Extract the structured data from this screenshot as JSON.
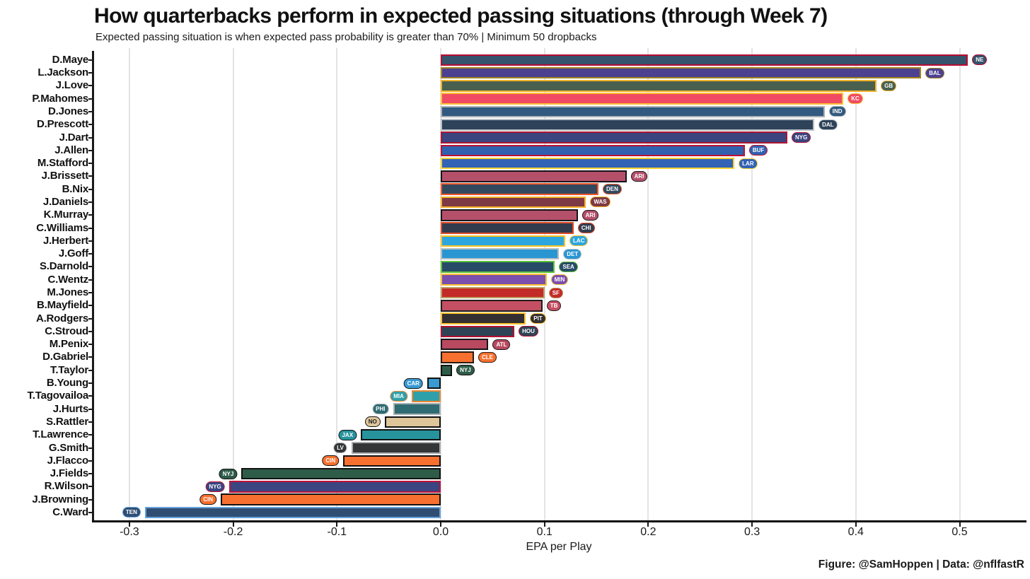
{
  "header": {
    "title": "How quarterbacks perform in expected passing situations (through Week 7)",
    "subtitle": "Expected passing situation is when expected pass probability is greater than 70% | Minimum 50 dropbacks"
  },
  "footer": {
    "caption": "Figure: @SamHoppen | Data: @nflfastR"
  },
  "chart_data": {
    "type": "bar",
    "orientation": "horizontal",
    "title": "How quarterbacks perform in expected passing situations (through Week 7)",
    "subtitle": "Expected passing situation is when expected pass probability is greater than 70% | Minimum 50 dropbacks",
    "xlabel": "EPA per Play",
    "ylabel": "",
    "xlim": [
      -0.335,
      0.568
    ],
    "x_ticks": [
      -0.3,
      -0.2,
      -0.1,
      0.0,
      0.1,
      0.2,
      0.3,
      0.4,
      0.5
    ],
    "x_tick_labels": [
      "-0.3",
      "-0.2",
      "-0.1",
      "0.0",
      "0.1",
      "0.2",
      "0.3",
      "0.4",
      "0.5"
    ],
    "grid": "vertical-major-only",
    "legend": "none",
    "bars": [
      {
        "player": "D.Maye",
        "team": "NE",
        "value": 0.508,
        "fill": "#35536B",
        "border": "#B80D33",
        "logo_text": "#ffffff"
      },
      {
        "player": "L.Jackson",
        "team": "BAL",
        "value": 0.463,
        "fill": "#4C4191",
        "border": "#A3841F",
        "logo_text": "#ffffff"
      },
      {
        "player": "J.Love",
        "team": "GB",
        "value": 0.42,
        "fill": "#49604F",
        "border": "#F2B127",
        "logo_text": "#ffffff"
      },
      {
        "player": "P.Mahomes",
        "team": "KC",
        "value": 0.388,
        "fill": "#F04B62",
        "border": "#FCBF33",
        "logo_text": "#ffffff"
      },
      {
        "player": "D.Jones",
        "team": "IND",
        "value": 0.37,
        "fill": "#32597F",
        "border": "#A9B0B5",
        "logo_text": "#ffffff"
      },
      {
        "player": "D.Prescott",
        "team": "DAL",
        "value": 0.36,
        "fill": "#2E4259",
        "border": "#B9C0C4",
        "logo_text": "#ffffff"
      },
      {
        "player": "J.Dart",
        "team": "NYG",
        "value": 0.334,
        "fill": "#3B447E",
        "border": "#AD1433",
        "logo_text": "#ffffff"
      },
      {
        "player": "J.Allen",
        "team": "BUF",
        "value": 0.293,
        "fill": "#3061AE",
        "border": "#BD0F33",
        "logo_text": "#ffffff"
      },
      {
        "player": "M.Stafford",
        "team": "LAR",
        "value": 0.283,
        "fill": "#3263B4",
        "border": "#F4D031",
        "logo_text": "#ffffff"
      },
      {
        "player": "J.Brissett",
        "team": "ARI",
        "value": 0.179,
        "fill": "#B5506B",
        "border": "#15151A",
        "logo_text": "#ffffff"
      },
      {
        "player": "B.Nix",
        "team": "DEN",
        "value": 0.152,
        "fill": "#32495E",
        "border": "#F4562A",
        "logo_text": "#ffffff"
      },
      {
        "player": "J.Daniels",
        "team": "WAS",
        "value": 0.14,
        "fill": "#7E3A44",
        "border": "#F6B126",
        "logo_text": "#ffffff"
      },
      {
        "player": "K.Murray",
        "team": "ARI",
        "value": 0.132,
        "fill": "#B5506B",
        "border": "#15151A",
        "logo_text": "#ffffff"
      },
      {
        "player": "C.Williams",
        "team": "CHI",
        "value": 0.128,
        "fill": "#323C4E",
        "border": "#E04A26",
        "logo_text": "#ffffff"
      },
      {
        "player": "J.Herbert",
        "team": "LAC",
        "value": 0.12,
        "fill": "#2DA6E0",
        "border": "#FCC220",
        "logo_text": "#ffffff"
      },
      {
        "player": "J.Goff",
        "team": "DET",
        "value": 0.114,
        "fill": "#2996D2",
        "border": "#B9BEC2",
        "logo_text": "#ffffff"
      },
      {
        "player": "S.Darnold",
        "team": "SEA",
        "value": 0.11,
        "fill": "#274B67",
        "border": "#5DC438",
        "logo_text": "#ffffff"
      },
      {
        "player": "C.Wentz",
        "team": "MIN",
        "value": 0.102,
        "fill": "#7B4FAE",
        "border": "#FBC12F",
        "logo_text": "#ffffff"
      },
      {
        "player": "M.Jones",
        "team": "SF",
        "value": 0.1,
        "fill": "#C32B28",
        "border": "#BD9C62",
        "logo_text": "#ffffff"
      },
      {
        "player": "B.Mayfield",
        "team": "TB",
        "value": 0.098,
        "fill": "#C54F63",
        "border": "#1F1D1B",
        "logo_text": "#ffffff"
      },
      {
        "player": "A.Rodgers",
        "team": "PIT",
        "value": 0.082,
        "fill": "#332F30",
        "border": "#FCC22D",
        "logo_text": "#ffffff"
      },
      {
        "player": "C.Stroud",
        "team": "HOU",
        "value": 0.071,
        "fill": "#2E4355",
        "border": "#B01030",
        "logo_text": "#ffffff"
      },
      {
        "player": "M.Penix",
        "team": "ATL",
        "value": 0.046,
        "fill": "#B8495F",
        "border": "#15151A",
        "logo_text": "#ffffff"
      },
      {
        "player": "D.Gabriel",
        "team": "CLE",
        "value": 0.032,
        "fill": "#F7702F",
        "border": "#2A1C10",
        "logo_text": "#ffffff"
      },
      {
        "player": "T.Taylor",
        "team": "NYJ",
        "value": 0.011,
        "fill": "#2E5C49",
        "border": "#121212",
        "logo_text": "#ffffff"
      },
      {
        "player": "B.Young",
        "team": "CAR",
        "value": -0.013,
        "fill": "#3A9AD2",
        "border": "#121212",
        "logo_text": "#ffffff"
      },
      {
        "player": "T.Tagovailoa",
        "team": "MIA",
        "value": -0.028,
        "fill": "#2FA0A9",
        "border": "#ED8733",
        "logo_text": "#ffffff"
      },
      {
        "player": "J.Hurts",
        "team": "PHI",
        "value": -0.046,
        "fill": "#2F6B72",
        "border": "#A8B0B2",
        "logo_text": "#ffffff"
      },
      {
        "player": "S.Rattler",
        "team": "NO",
        "value": -0.054,
        "fill": "#DEC69A",
        "border": "#121212",
        "logo_text": "#1a1a1a"
      },
      {
        "player": "T.Lawrence",
        "team": "JAX",
        "value": -0.077,
        "fill": "#27939C",
        "border": "#121212",
        "logo_text": "#ffffff"
      },
      {
        "player": "G.Smith",
        "team": "LV",
        "value": -0.086,
        "fill": "#333536",
        "border": "#A9ADB0",
        "logo_text": "#ffffff"
      },
      {
        "player": "J.Flacco",
        "team": "CIN",
        "value": -0.094,
        "fill": "#F7702F",
        "border": "#121212",
        "logo_text": "#ffffff"
      },
      {
        "player": "J.Fields",
        "team": "NYJ",
        "value": -0.192,
        "fill": "#2E5C49",
        "border": "#121212",
        "logo_text": "#ffffff"
      },
      {
        "player": "R.Wilson",
        "team": "NYG",
        "value": -0.204,
        "fill": "#3A4581",
        "border": "#BF1238",
        "logo_text": "#ffffff"
      },
      {
        "player": "J.Browning",
        "team": "CIN",
        "value": -0.212,
        "fill": "#F7702F",
        "border": "#121212",
        "logo_text": "#ffffff"
      },
      {
        "player": "C.Ward",
        "team": "TEN",
        "value": -0.285,
        "fill": "#2F4E72",
        "border": "#64A1DC",
        "logo_text": "#ffffff"
      }
    ]
  }
}
